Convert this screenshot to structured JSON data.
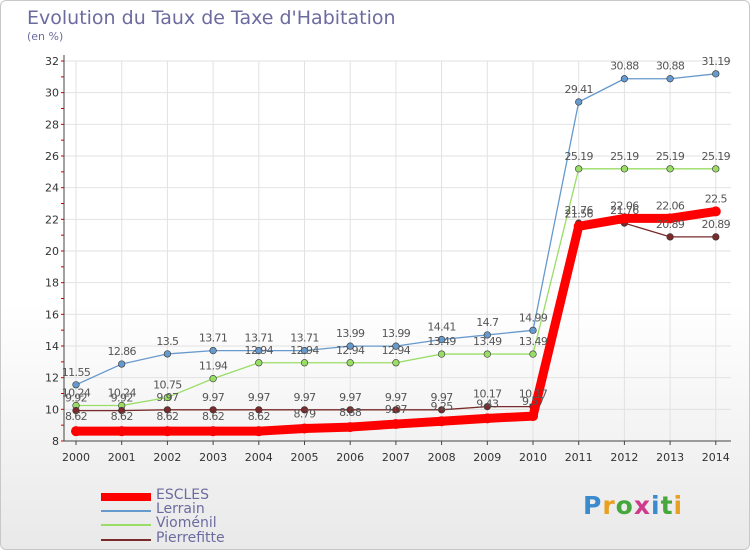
{
  "chart_data": {
    "type": "line",
    "title": "Evolution du Taux de Taxe d'Habitation",
    "subtitle": "(en %)",
    "x": [
      "2000",
      "2001",
      "2002",
      "2003",
      "2004",
      "2005",
      "2006",
      "2007",
      "2008",
      "2009",
      "2010",
      "2011",
      "2012",
      "2013",
      "2014"
    ],
    "ylim": [
      8,
      32
    ],
    "yticks": [
      8,
      10,
      12,
      14,
      16,
      18,
      20,
      22,
      24,
      26,
      28,
      30,
      32
    ],
    "grid": true,
    "legend_position": "bottom-left",
    "series": [
      {
        "name": "ESCLES",
        "color": "#ff0000",
        "values": [
          8.62,
          8.62,
          8.62,
          8.62,
          8.62,
          8.79,
          8.88,
          9.07,
          9.25,
          9.43,
          9.57,
          21.56,
          22.06,
          22.06,
          22.5
        ],
        "labels": [
          "8.62",
          "8.62",
          "8.62",
          "8.62",
          "8.62",
          "8.79",
          "8.88",
          "9.07",
          "9.25",
          "9.43",
          "9.57",
          "21.56",
          "22.06",
          "22.06",
          "22.5"
        ]
      },
      {
        "name": "Lerrain",
        "color": "#6699cc",
        "values": [
          11.55,
          12.86,
          13.5,
          13.71,
          13.71,
          13.71,
          13.99,
          13.99,
          14.41,
          14.7,
          14.99,
          29.41,
          30.88,
          30.88,
          31.19
        ],
        "labels": [
          "11.55",
          "12.86",
          "13.5",
          "13.71",
          "13.71",
          "13.71",
          "13.99",
          "13.99",
          "14.41",
          "14.7",
          "14.99",
          "29.41",
          "30.88",
          "30.88",
          "31.19"
        ]
      },
      {
        "name": "Vioménil",
        "color": "#99dd66",
        "values": [
          10.24,
          10.24,
          10.75,
          11.94,
          12.94,
          12.94,
          12.94,
          12.94,
          13.49,
          13.49,
          13.49,
          25.19,
          25.19,
          25.19,
          25.19
        ],
        "labels": [
          "10.24",
          "10.24",
          "10.75",
          "11.94",
          "12.94",
          "12.94",
          "12.94",
          "12.94",
          "13.49",
          "13.49",
          "13.49",
          "25.19",
          "25.19",
          "25.19",
          "25.19"
        ]
      },
      {
        "name": "Pierrefitte",
        "color": "#7a2a2a",
        "values": [
          9.92,
          9.92,
          9.97,
          9.97,
          9.97,
          9.97,
          9.97,
          9.97,
          9.97,
          10.17,
          10.17,
          21.76,
          21.76,
          20.89,
          20.89
        ],
        "labels": [
          "9.92",
          "9.92",
          "9.97",
          "9.97",
          "9.97",
          "9.97",
          "9.97",
          "9.97",
          "9.97",
          "10.17",
          "10.17",
          "21.76",
          "21.76",
          "20.89",
          "20.89"
        ]
      }
    ]
  },
  "logo": {
    "text": "Proxiti"
  }
}
